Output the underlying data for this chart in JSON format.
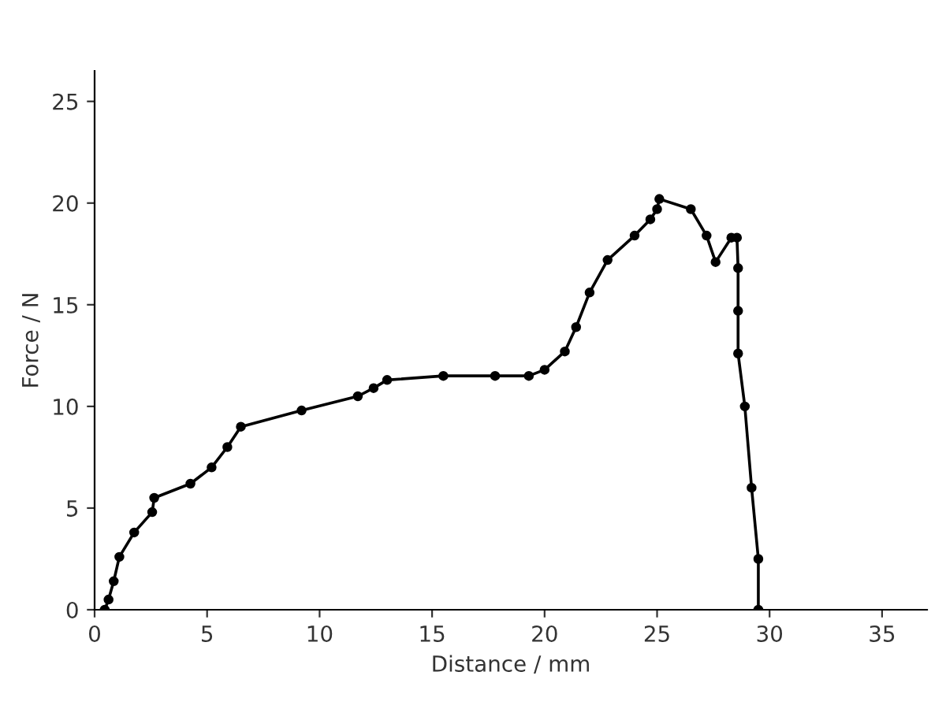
{
  "chart_data": {
    "type": "line",
    "xlabel": "Distance / mm",
    "ylabel": "Force / N",
    "x": [
      0.45,
      0.62,
      0.85,
      1.1,
      1.76,
      2.56,
      2.65,
      4.26,
      5.2,
      5.9,
      6.5,
      9.2,
      11.7,
      12.4,
      13.0,
      15.5,
      17.8,
      19.3,
      20.0,
      20.9,
      21.4,
      22.0,
      22.8,
      24.0,
      24.7,
      25.0,
      25.1,
      26.5,
      27.2,
      27.6,
      28.3,
      28.55,
      28.6,
      28.6,
      28.6,
      28.9,
      29.2,
      29.5,
      29.5
    ],
    "series": [
      {
        "color": "#000000",
        "values": [
          0,
          0.5,
          1.4,
          2.6,
          3.8,
          4.8,
          5.5,
          6.2,
          7.0,
          8.0,
          9.0,
          9.8,
          10.5,
          10.9,
          11.3,
          11.5,
          11.5,
          11.5,
          11.8,
          12.7,
          13.9,
          15.6,
          17.2,
          18.4,
          19.2,
          19.7,
          20.2,
          19.7,
          18.4,
          17.1,
          18.3,
          18.3,
          16.8,
          14.7,
          12.6,
          10.0,
          6.0,
          2.5,
          0
        ]
      }
    ],
    "marker": "circle",
    "line_style": "solid",
    "xlim": [
      0,
      37
    ],
    "ylim": [
      0,
      26.5
    ],
    "xticks": [
      0,
      5,
      10,
      15,
      20,
      25,
      30,
      35
    ],
    "yticks": [
      0,
      5,
      10,
      15,
      20,
      25
    ]
  }
}
